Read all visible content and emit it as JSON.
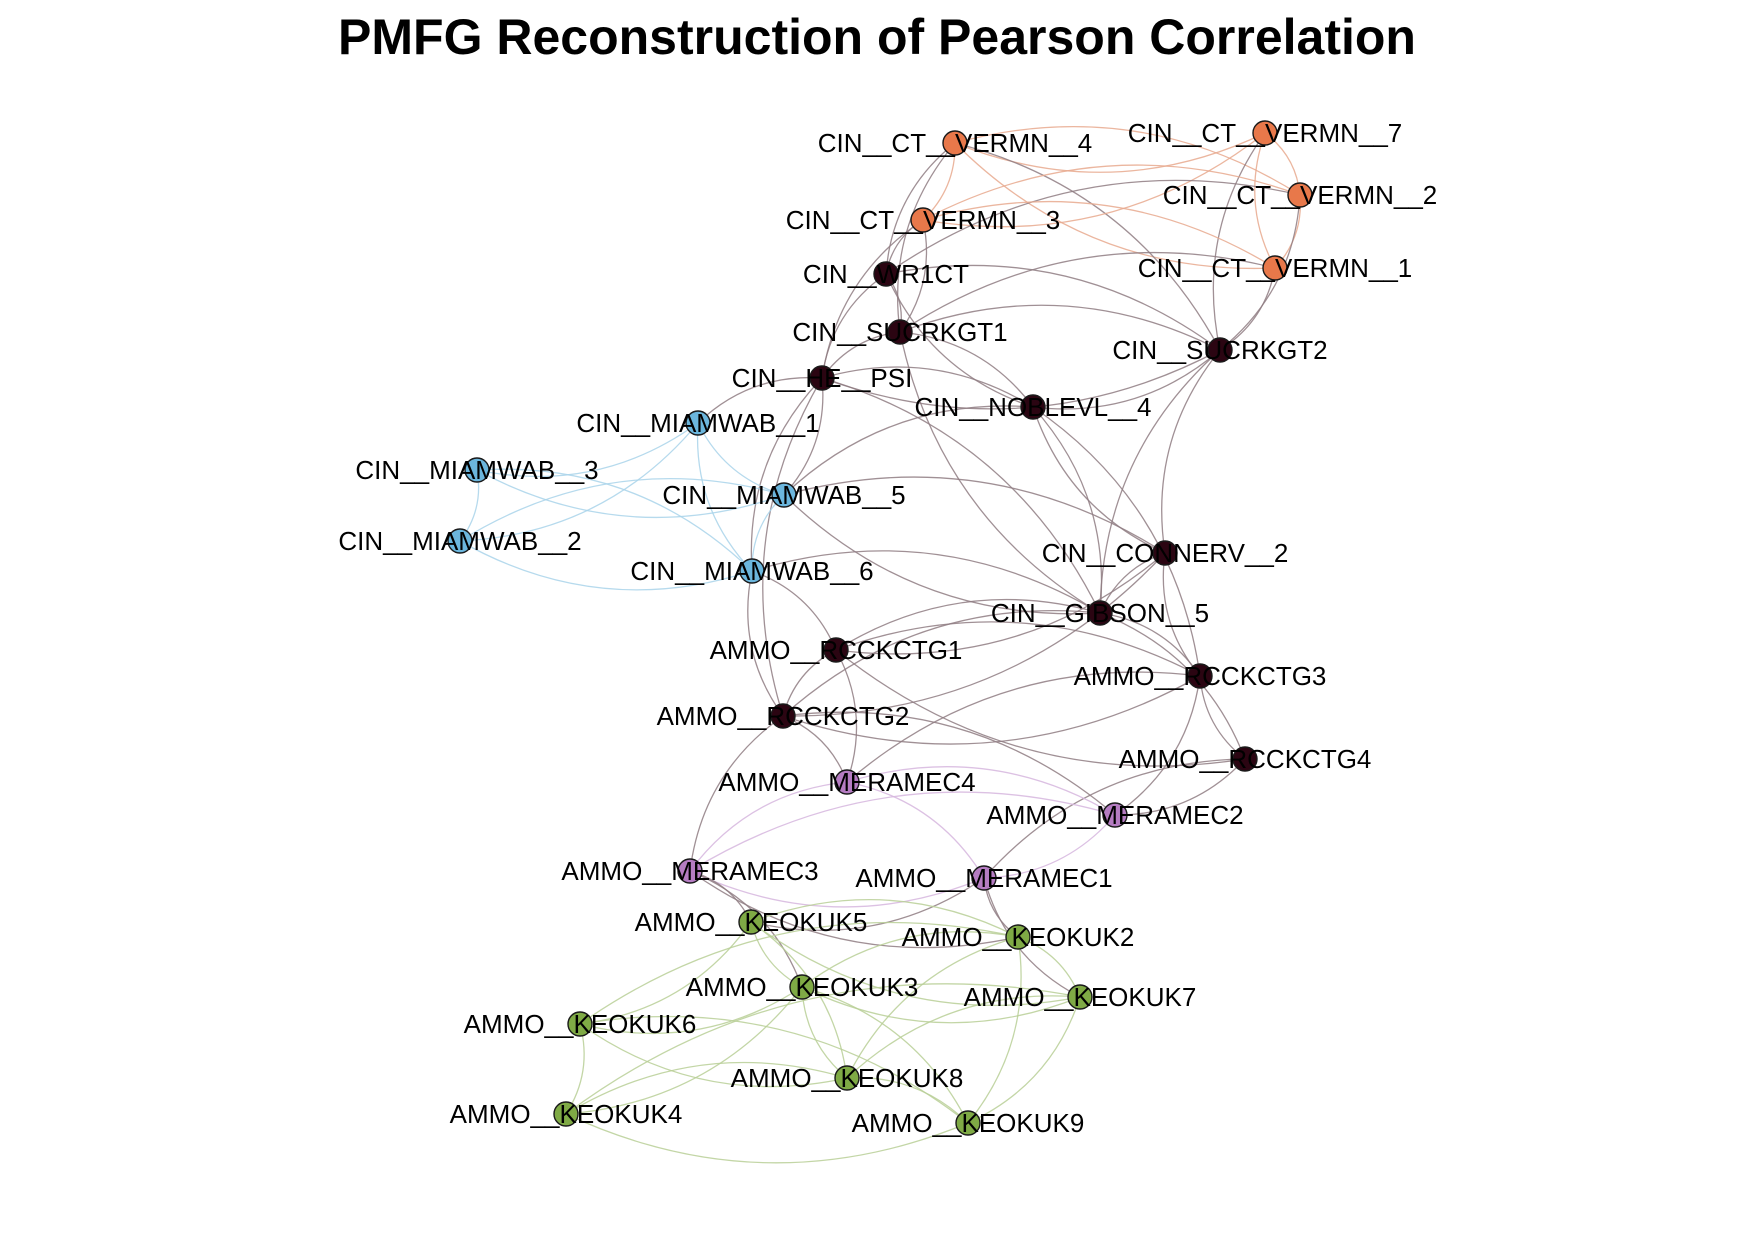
{
  "title": "PMFG Reconstruction of Pearson Correlation",
  "colors": {
    "orange": "#E8784A",
    "dark": "#2B0512",
    "blue": "#6BB6DD",
    "purple": "#B57CC2",
    "green": "#7FAA45"
  },
  "edge_colors": {
    "orange": "#E8A98E",
    "dark": "#8F7D82",
    "blue": "#A9D4EA",
    "purple": "#D6B6DE",
    "green": "#B8CF97"
  },
  "nodes": [
    {
      "id": "CIN__CT__VERMN__4",
      "group": "orange"
    },
    {
      "id": "CIN__CT__VERMN__7",
      "group": "orange"
    },
    {
      "id": "CIN__CT__VERMN__2",
      "group": "orange"
    },
    {
      "id": "CIN__CT__VERMN__3",
      "group": "orange"
    },
    {
      "id": "CIN__CT__VERMN__1",
      "group": "orange"
    },
    {
      "id": "CIN__WR1CT",
      "group": "dark"
    },
    {
      "id": "CIN__SUCRKGT1",
      "group": "dark"
    },
    {
      "id": "CIN__SUCRKGT2",
      "group": "dark"
    },
    {
      "id": "CIN__HE__PSI",
      "group": "dark"
    },
    {
      "id": "CIN__NOBLEVL__4",
      "group": "dark"
    },
    {
      "id": "CIN__MIAMWAB__1",
      "group": "blue"
    },
    {
      "id": "CIN__MIAMWAB__3",
      "group": "blue"
    },
    {
      "id": "CIN__MIAMWAB__5",
      "group": "blue"
    },
    {
      "id": "CIN__MIAMWAB__2",
      "group": "blue"
    },
    {
      "id": "CIN__MIAMWAB__6",
      "group": "blue"
    },
    {
      "id": "CIN__CONNERV__2",
      "group": "dark"
    },
    {
      "id": "CIN__GIBSON__5",
      "group": "dark"
    },
    {
      "id": "AMMO__RCCKCTG1",
      "group": "dark"
    },
    {
      "id": "AMMO__RCCKCTG3",
      "group": "dark"
    },
    {
      "id": "AMMO__RCCKCTG2",
      "group": "dark"
    },
    {
      "id": "AMMO__RCCKCTG4",
      "group": "dark"
    },
    {
      "id": "AMMO__MERAMEC4",
      "group": "purple"
    },
    {
      "id": "AMMO__MERAMEC2",
      "group": "purple"
    },
    {
      "id": "AMMO__MERAMEC3",
      "group": "purple"
    },
    {
      "id": "AMMO__MERAMEC1",
      "group": "purple"
    },
    {
      "id": "AMMO__KEOKUK5",
      "group": "green"
    },
    {
      "id": "AMMO__KEOKUK2",
      "group": "green"
    },
    {
      "id": "AMMO__KEOKUK3",
      "group": "green"
    },
    {
      "id": "AMMO__KEOKUK7",
      "group": "green"
    },
    {
      "id": "AMMO__KEOKUK6",
      "group": "green"
    },
    {
      "id": "AMMO__KEOKUK8",
      "group": "green"
    },
    {
      "id": "AMMO__KEOKUK4",
      "group": "green"
    },
    {
      "id": "AMMO__KEOKUK9",
      "group": "green"
    }
  ],
  "edges": [
    [
      "CIN__CT__VERMN__4",
      "CIN__CT__VERMN__7"
    ],
    [
      "CIN__CT__VERMN__4",
      "CIN__CT__VERMN__2"
    ],
    [
      "CIN__CT__VERMN__4",
      "CIN__CT__VERMN__1"
    ],
    [
      "CIN__CT__VERMN__4",
      "CIN__CT__VERMN__3"
    ],
    [
      "CIN__CT__VERMN__4",
      "CIN__WR1CT"
    ],
    [
      "CIN__CT__VERMN__4",
      "CIN__SUCRKGT2"
    ],
    [
      "CIN__CT__VERMN__4",
      "CIN__SUCRKGT1"
    ],
    [
      "CIN__CT__VERMN__7",
      "CIN__CT__VERMN__2"
    ],
    [
      "CIN__CT__VERMN__7",
      "CIN__CT__VERMN__1"
    ],
    [
      "CIN__CT__VERMN__7",
      "CIN__CT__VERMN__3"
    ],
    [
      "CIN__CT__VERMN__7",
      "CIN__SUCRKGT2"
    ],
    [
      "CIN__CT__VERMN__2",
      "CIN__CT__VERMN__1"
    ],
    [
      "CIN__CT__VERMN__2",
      "CIN__CT__VERMN__3"
    ],
    [
      "CIN__CT__VERMN__2",
      "CIN__SUCRKGT2"
    ],
    [
      "CIN__CT__VERMN__2",
      "CIN__WR1CT"
    ],
    [
      "CIN__CT__VERMN__3",
      "CIN__CT__VERMN__1"
    ],
    [
      "CIN__CT__VERMN__3",
      "CIN__WR1CT"
    ],
    [
      "CIN__CT__VERMN__3",
      "CIN__SUCRKGT1"
    ],
    [
      "CIN__CT__VERMN__3",
      "CIN__HE__PSI"
    ],
    [
      "CIN__CT__VERMN__1",
      "CIN__SUCRKGT2"
    ],
    [
      "CIN__CT__VERMN__1",
      "CIN__SUCRKGT1"
    ],
    [
      "CIN__WR1CT",
      "CIN__SUCRKGT1"
    ],
    [
      "CIN__WR1CT",
      "CIN__HE__PSI"
    ],
    [
      "CIN__WR1CT",
      "CIN__SUCRKGT2"
    ],
    [
      "CIN__WR1CT",
      "CIN__NOBLEVL__4"
    ],
    [
      "CIN__SUCRKGT1",
      "CIN__SUCRKGT2"
    ],
    [
      "CIN__SUCRKGT1",
      "CIN__HE__PSI"
    ],
    [
      "CIN__SUCRKGT1",
      "CIN__NOBLEVL__4"
    ],
    [
      "CIN__SUCRKGT1",
      "CIN__GIBSON__5"
    ],
    [
      "CIN__SUCRKGT2",
      "CIN__NOBLEVL__4"
    ],
    [
      "CIN__SUCRKGT2",
      "CIN__CONNERV__2"
    ],
    [
      "CIN__SUCRKGT2",
      "CIN__HE__PSI"
    ],
    [
      "CIN__SUCRKGT2",
      "CIN__GIBSON__5"
    ],
    [
      "CIN__HE__PSI",
      "CIN__NOBLEVL__4"
    ],
    [
      "CIN__HE__PSI",
      "CIN__MIAMWAB__1"
    ],
    [
      "CIN__HE__PSI",
      "CIN__MIAMWAB__5"
    ],
    [
      "CIN__HE__PSI",
      "CIN__MIAMWAB__6"
    ],
    [
      "CIN__HE__PSI",
      "CIN__GIBSON__5"
    ],
    [
      "CIN__HE__PSI",
      "AMMO__RCCKCTG2"
    ],
    [
      "CIN__NOBLEVL__4",
      "CIN__GIBSON__5"
    ],
    [
      "CIN__NOBLEVL__4",
      "CIN__CONNERV__2"
    ],
    [
      "CIN__NOBLEVL__4",
      "AMMO__RCCKCTG3"
    ],
    [
      "CIN__NOBLEVL__4",
      "CIN__MIAMWAB__5"
    ],
    [
      "CIN__MIAMWAB__1",
      "CIN__MIAMWAB__3"
    ],
    [
      "CIN__MIAMWAB__1",
      "CIN__MIAMWAB__5"
    ],
    [
      "CIN__MIAMWAB__1",
      "CIN__MIAMWAB__2"
    ],
    [
      "CIN__MIAMWAB__1",
      "CIN__MIAMWAB__6"
    ],
    [
      "CIN__MIAMWAB__3",
      "CIN__MIAMWAB__2"
    ],
    [
      "CIN__MIAMWAB__3",
      "CIN__MIAMWAB__5"
    ],
    [
      "CIN__MIAMWAB__3",
      "CIN__MIAMWAB__6"
    ],
    [
      "CIN__MIAMWAB__2",
      "CIN__MIAMWAB__6"
    ],
    [
      "CIN__MIAMWAB__2",
      "CIN__MIAMWAB__5"
    ],
    [
      "CIN__MIAMWAB__5",
      "CIN__MIAMWAB__6"
    ],
    [
      "CIN__MIAMWAB__5",
      "CIN__CONNERV__2"
    ],
    [
      "CIN__MIAMWAB__5",
      "CIN__GIBSON__5"
    ],
    [
      "CIN__MIAMWAB__6",
      "CIN__GIBSON__5"
    ],
    [
      "CIN__MIAMWAB__6",
      "AMMO__RCCKCTG2"
    ],
    [
      "CIN__MIAMWAB__6",
      "AMMO__RCCKCTG1"
    ],
    [
      "CIN__CONNERV__2",
      "CIN__GIBSON__5"
    ],
    [
      "CIN__CONNERV__2",
      "AMMO__RCCKCTG1"
    ],
    [
      "CIN__CONNERV__2",
      "AMMO__RCCKCTG3"
    ],
    [
      "CIN__CONNERV__2",
      "AMMO__RCCKCTG2"
    ],
    [
      "CIN__GIBSON__5",
      "AMMO__RCCKCTG1"
    ],
    [
      "CIN__GIBSON__5",
      "AMMO__RCCKCTG3"
    ],
    [
      "CIN__GIBSON__5",
      "AMMO__RCCKCTG2"
    ],
    [
      "CIN__GIBSON__5",
      "AMMO__RCCKCTG4"
    ],
    [
      "AMMO__RCCKCTG1",
      "AMMO__RCCKCTG2"
    ],
    [
      "AMMO__RCCKCTG1",
      "AMMO__RCCKCTG3"
    ],
    [
      "AMMO__RCCKCTG1",
      "AMMO__RCCKCTG4"
    ],
    [
      "AMMO__RCCKCTG1",
      "AMMO__MERAMEC4"
    ],
    [
      "AMMO__RCCKCTG2",
      "AMMO__RCCKCTG3"
    ],
    [
      "AMMO__RCCKCTG2",
      "AMMO__MERAMEC4"
    ],
    [
      "AMMO__RCCKCTG2",
      "AMMO__MERAMEC3"
    ],
    [
      "AMMO__RCCKCTG2",
      "AMMO__MERAMEC2"
    ],
    [
      "AMMO__RCCKCTG3",
      "AMMO__RCCKCTG4"
    ],
    [
      "AMMO__RCCKCTG3",
      "AMMO__MERAMEC2"
    ],
    [
      "AMMO__RCCKCTG3",
      "AMMO__MERAMEC4"
    ],
    [
      "AMMO__RCCKCTG4",
      "AMMO__MERAMEC2"
    ],
    [
      "AMMO__RCCKCTG4",
      "AMMO__MERAMEC1"
    ],
    [
      "AMMO__MERAMEC4",
      "AMMO__MERAMEC2"
    ],
    [
      "AMMO__MERAMEC4",
      "AMMO__MERAMEC3"
    ],
    [
      "AMMO__MERAMEC4",
      "AMMO__MERAMEC1"
    ],
    [
      "AMMO__MERAMEC2",
      "AMMO__MERAMEC3"
    ],
    [
      "AMMO__MERAMEC2",
      "AMMO__MERAMEC1"
    ],
    [
      "AMMO__MERAMEC3",
      "AMMO__MERAMEC1"
    ],
    [
      "AMMO__MERAMEC3",
      "AMMO__KEOKUK5"
    ],
    [
      "AMMO__MERAMEC3",
      "AMMO__KEOKUK2"
    ],
    [
      "AMMO__MERAMEC3",
      "AMMO__KEOKUK3"
    ],
    [
      "AMMO__MERAMEC1",
      "AMMO__KEOKUK2"
    ],
    [
      "AMMO__MERAMEC1",
      "AMMO__KEOKUK5"
    ],
    [
      "AMMO__MERAMEC1",
      "AMMO__KEOKUK7"
    ],
    [
      "AMMO__KEOKUK5",
      "AMMO__KEOKUK2"
    ],
    [
      "AMMO__KEOKUK5",
      "AMMO__KEOKUK3"
    ],
    [
      "AMMO__KEOKUK5",
      "AMMO__KEOKUK6"
    ],
    [
      "AMMO__KEOKUK5",
      "AMMO__KEOKUK7"
    ],
    [
      "AMMO__KEOKUK5",
      "AMMO__KEOKUK8"
    ],
    [
      "AMMO__KEOKUK2",
      "AMMO__KEOKUK3"
    ],
    [
      "AMMO__KEOKUK2",
      "AMMO__KEOKUK7"
    ],
    [
      "AMMO__KEOKUK2",
      "AMMO__KEOKUK8"
    ],
    [
      "AMMO__KEOKUK2",
      "AMMO__KEOKUK9"
    ],
    [
      "AMMO__KEOKUK2",
      "AMMO__KEOKUK6"
    ],
    [
      "AMMO__KEOKUK3",
      "AMMO__KEOKUK6"
    ],
    [
      "AMMO__KEOKUK3",
      "AMMO__KEOKUK8"
    ],
    [
      "AMMO__KEOKUK3",
      "AMMO__KEOKUK4"
    ],
    [
      "AMMO__KEOKUK3",
      "AMMO__KEOKUK7"
    ],
    [
      "AMMO__KEOKUK3",
      "AMMO__KEOKUK9"
    ],
    [
      "AMMO__KEOKUK7",
      "AMMO__KEOKUK8"
    ],
    [
      "AMMO__KEOKUK7",
      "AMMO__KEOKUK9"
    ],
    [
      "AMMO__KEOKUK7",
      "AMMO__KEOKUK4"
    ],
    [
      "AMMO__KEOKUK6",
      "AMMO__KEOKUK4"
    ],
    [
      "AMMO__KEOKUK6",
      "AMMO__KEOKUK8"
    ],
    [
      "AMMO__KEOKUK6",
      "AMMO__KEOKUK9"
    ],
    [
      "AMMO__KEOKUK8",
      "AMMO__KEOKUK4"
    ],
    [
      "AMMO__KEOKUK8",
      "AMMO__KEOKUK9"
    ],
    [
      "AMMO__KEOKUK4",
      "AMMO__KEOKUK9"
    ]
  ]
}
